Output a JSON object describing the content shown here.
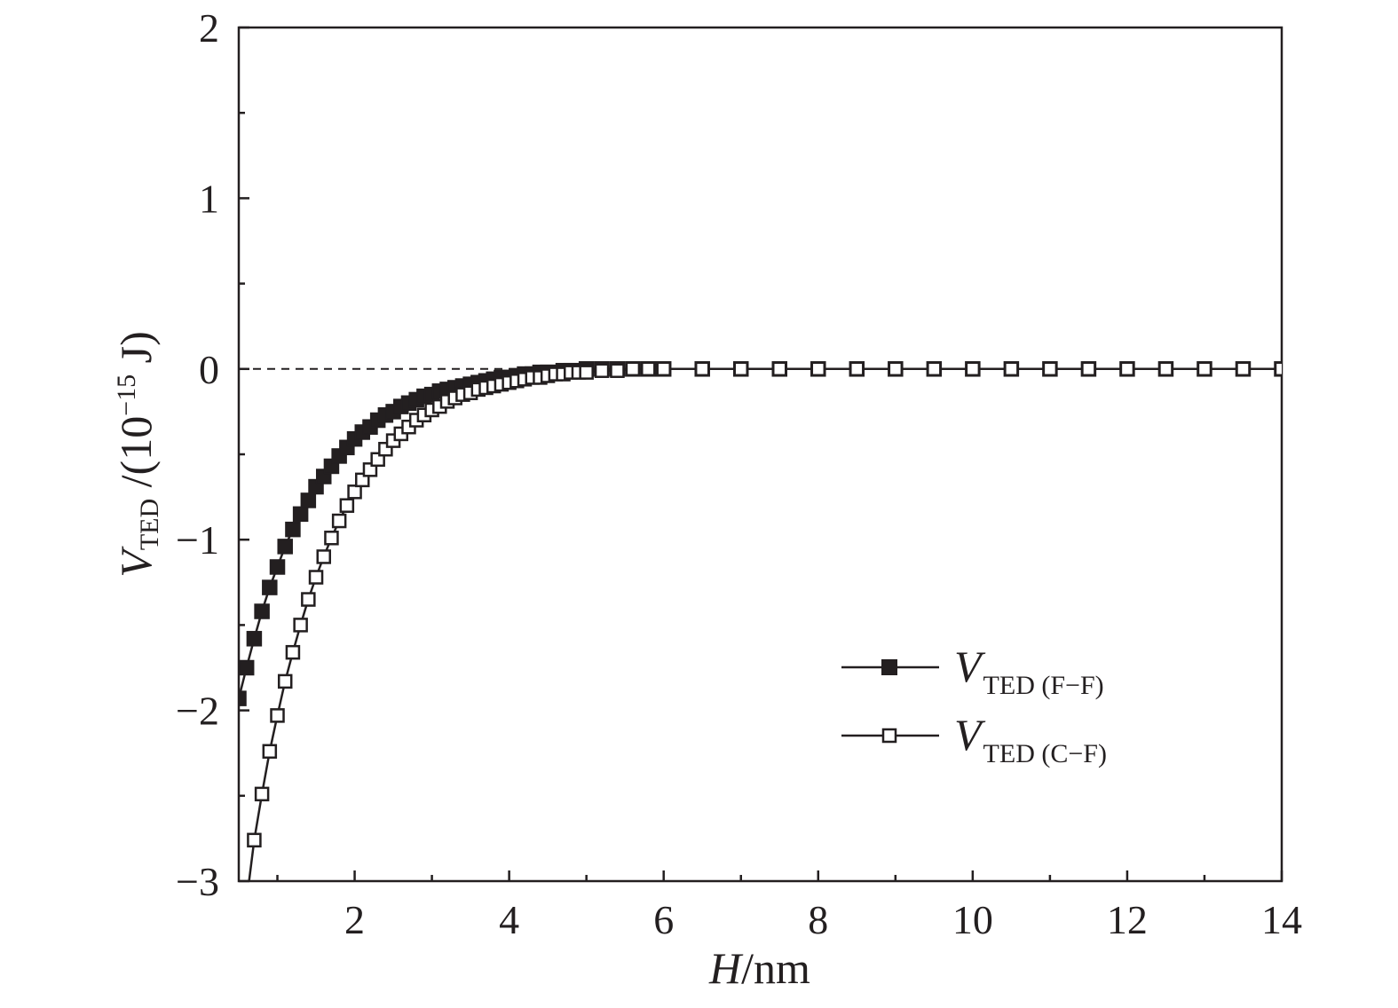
{
  "chart_data": {
    "type": "scatter",
    "title": "",
    "xlabel": {
      "italic": "H",
      "rest": "/nm"
    },
    "ylabel": {
      "italic": "V",
      "sub": "TED",
      "rest": " /(10",
      "sup": "−15",
      "tail": " J)"
    },
    "xlim": [
      0.5,
      14
    ],
    "ylim": [
      -3,
      2
    ],
    "xticks": [
      2,
      4,
      6,
      8,
      10,
      12,
      14
    ],
    "yticks": [
      -3,
      -2,
      -1,
      0,
      1,
      2
    ],
    "xtick_labels": [
      "2",
      "4",
      "6",
      "8",
      "10",
      "12",
      "14"
    ],
    "ytick_labels": [
      "−3",
      "−2",
      "−1",
      "0",
      "1",
      "2"
    ],
    "reference_line": {
      "y": 0,
      "style": "dashed"
    },
    "legend": {
      "position": "lower-right"
    },
    "series": [
      {
        "name_main": "V",
        "name_sub": "TED (F−F)",
        "marker": "filled-square",
        "x": [
          0.5,
          0.6,
          0.7,
          0.8,
          0.9,
          1.0,
          1.1,
          1.2,
          1.3,
          1.4,
          1.5,
          1.6,
          1.7,
          1.8,
          1.9,
          2.0,
          2.1,
          2.2,
          2.3,
          2.4,
          2.5,
          2.6,
          2.7,
          2.8,
          2.9,
          3.0,
          3.1,
          3.2,
          3.3,
          3.4,
          3.5,
          3.6,
          3.7,
          3.8,
          3.9,
          4.0,
          4.1,
          4.2,
          4.3,
          4.4,
          4.5,
          4.6,
          4.7,
          4.8,
          4.9,
          5.0,
          5.2,
          5.4,
          5.6,
          5.8,
          6.0,
          6.5,
          7.0,
          7.5,
          8.0,
          8.5,
          9.0,
          9.5,
          10.0,
          10.5,
          11.0,
          11.5,
          12.0,
          12.5,
          13.0,
          13.5,
          14.0
        ],
        "y": [
          -1.93,
          -1.75,
          -1.58,
          -1.42,
          -1.28,
          -1.16,
          -1.04,
          -0.94,
          -0.85,
          -0.77,
          -0.69,
          -0.63,
          -0.57,
          -0.51,
          -0.46,
          -0.41,
          -0.37,
          -0.34,
          -0.3,
          -0.27,
          -0.25,
          -0.22,
          -0.2,
          -0.18,
          -0.16,
          -0.15,
          -0.13,
          -0.12,
          -0.11,
          -0.1,
          -0.09,
          -0.08,
          -0.07,
          -0.06,
          -0.05,
          -0.05,
          -0.04,
          -0.03,
          -0.03,
          -0.02,
          -0.02,
          -0.02,
          -0.01,
          -0.01,
          -0.01,
          0.0,
          0.0,
          0.0,
          0.0,
          0.0,
          0.0,
          0.0,
          0.0,
          0.0,
          0.0,
          0.0,
          0.0,
          0.0,
          0.0,
          0.0,
          0.0,
          0.0,
          0.0,
          0.0,
          0.0,
          0.0,
          0.0
        ]
      },
      {
        "name_main": "V",
        "name_sub": "TED (C−F)",
        "marker": "open-square",
        "x": [
          0.6,
          0.7,
          0.8,
          0.9,
          1.0,
          1.1,
          1.2,
          1.3,
          1.4,
          1.5,
          1.6,
          1.7,
          1.8,
          1.9,
          2.0,
          2.1,
          2.2,
          2.3,
          2.4,
          2.5,
          2.6,
          2.7,
          2.8,
          2.9,
          3.0,
          3.1,
          3.2,
          3.3,
          3.4,
          3.5,
          3.6,
          3.7,
          3.8,
          3.9,
          4.0,
          4.1,
          4.2,
          4.3,
          4.4,
          4.5,
          4.6,
          4.7,
          4.8,
          4.9,
          5.0,
          5.2,
          5.4,
          5.6,
          5.8,
          6.0,
          6.5,
          7.0,
          7.5,
          8.0,
          8.5,
          9.0,
          9.5,
          10.0,
          10.5,
          11.0,
          11.5,
          12.0,
          12.5,
          13.0,
          13.5,
          14.0
        ],
        "y": [
          -3.12,
          -2.76,
          -2.49,
          -2.24,
          -2.03,
          -1.83,
          -1.66,
          -1.5,
          -1.35,
          -1.22,
          -1.1,
          -0.99,
          -0.89,
          -0.8,
          -0.72,
          -0.65,
          -0.59,
          -0.53,
          -0.47,
          -0.42,
          -0.38,
          -0.34,
          -0.3,
          -0.27,
          -0.24,
          -0.22,
          -0.19,
          -0.17,
          -0.15,
          -0.14,
          -0.12,
          -0.11,
          -0.1,
          -0.09,
          -0.08,
          -0.07,
          -0.06,
          -0.05,
          -0.05,
          -0.04,
          -0.03,
          -0.03,
          -0.02,
          -0.02,
          -0.02,
          -0.01,
          -0.01,
          0.0,
          0.0,
          0.0,
          0.0,
          0.0,
          0.0,
          0.0,
          0.0,
          0.0,
          0.0,
          0.0,
          0.0,
          0.0,
          0.0,
          0.0,
          0.0,
          0.0,
          0.0,
          0.0
        ]
      }
    ]
  }
}
